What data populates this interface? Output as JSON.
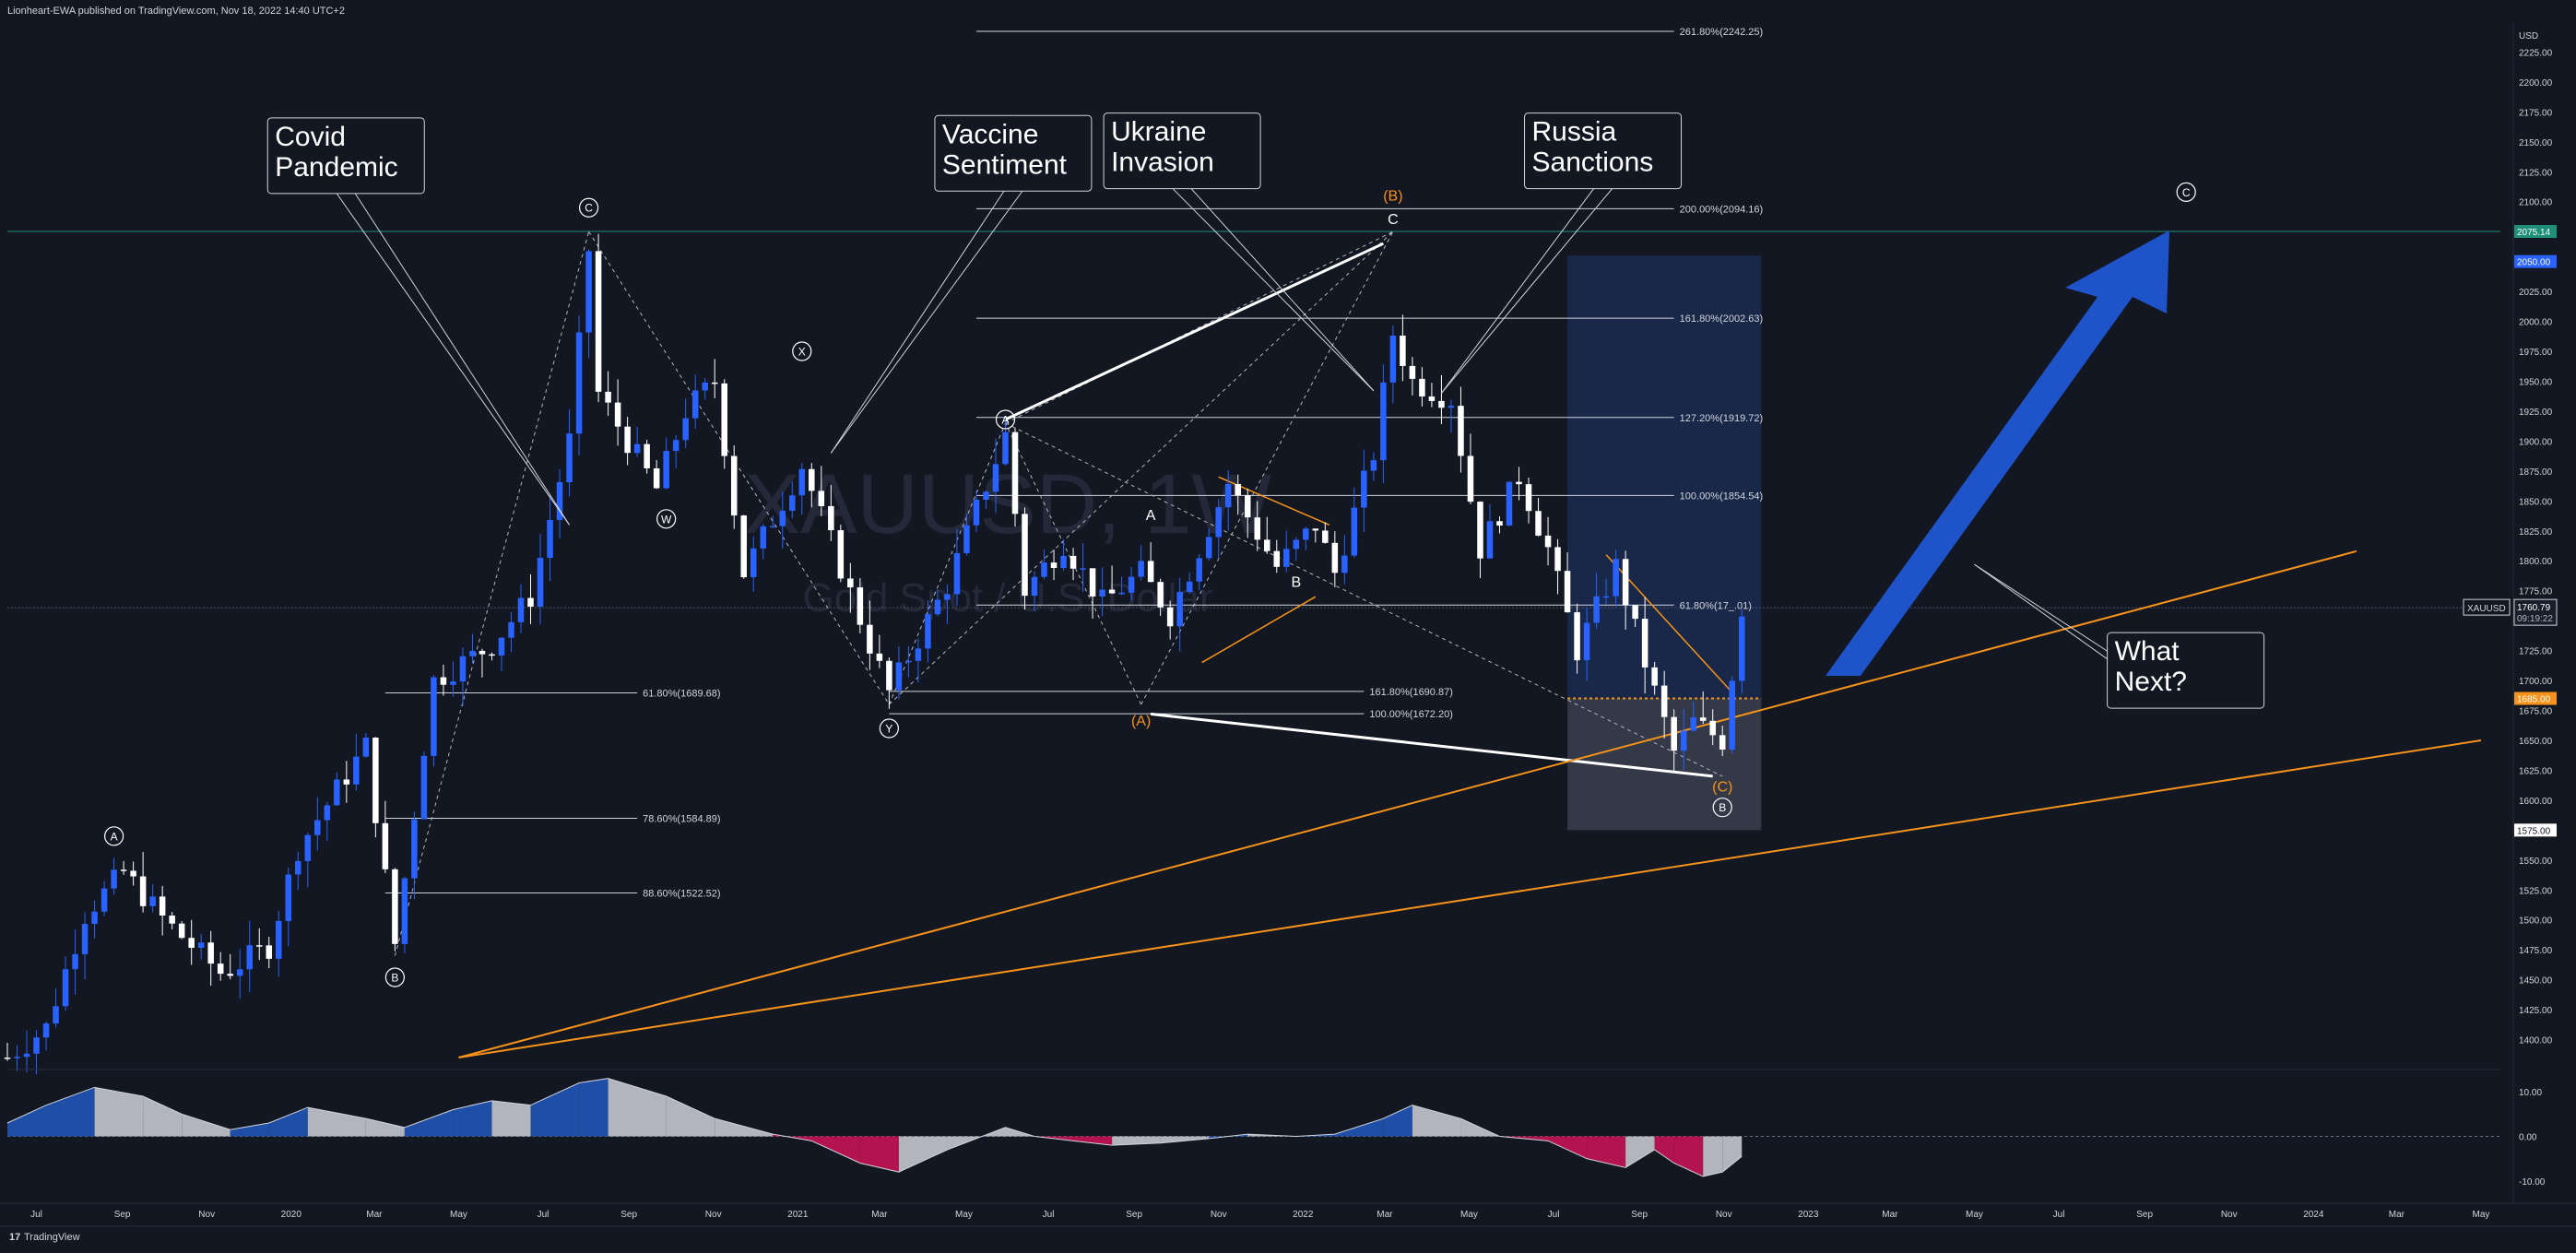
{
  "header": {
    "publisher_line": "Lionheart-EWA published on TradingView.com, Nov 18, 2022 14:40 UTC+2"
  },
  "footer": {
    "brand": "TradingView",
    "logo_glyph": "17"
  },
  "watermark": {
    "symbol": "XAUUSD, 1W",
    "description": "Gold Spot / U.S. Dollar"
  },
  "colors": {
    "background": "#131722",
    "bull": "#2962ff",
    "bear": "#ffffff",
    "text": "#d1d4dc",
    "orange": "#f7931a",
    "arrow": "#1e53c9",
    "osc_blue": "#1f4ea6",
    "osc_gray": "#b2b5be",
    "osc_red": "#b3134f",
    "teal_line": "#1e8f79",
    "fib": "#d1d4dc"
  },
  "price_axis": {
    "currency": "USD",
    "min": 1375,
    "max": 2250,
    "step": 25,
    "ticks": [
      "1400.00",
      "1425.00",
      "1450.00",
      "1475.00",
      "1500.00",
      "1525.00",
      "1550.00",
      "1575.00",
      "1600.00",
      "1625.00",
      "1650.00",
      "1675.00",
      "1700.00",
      "1725.00",
      "1750.00",
      "1775.00",
      "1800.00",
      "1825.00",
      "1850.00",
      "1875.00",
      "1900.00",
      "1925.00",
      "1950.00",
      "1975.00",
      "2000.00",
      "2025.00",
      "2050.00",
      "2075.00",
      "2100.00",
      "2125.00",
      "2150.00",
      "2175.00",
      "2200.00",
      "2225.00"
    ],
    "badges": [
      {
        "label": "2075.14",
        "value": 2075.14,
        "color": "#1e8f79"
      },
      {
        "label": "2050.00",
        "value": 2050,
        "color": "#2962ff"
      },
      {
        "label": "1685.00",
        "value": 1685,
        "color": "#f7931a"
      },
      {
        "label": "1575.00",
        "value": 1575,
        "color": "#ffffff"
      }
    ],
    "symbol_tag": {
      "symbol": "XAUUSD",
      "price": "1760.79",
      "countdown": "09:19:22",
      "value": 1760.79
    }
  },
  "time_axis": {
    "labels": [
      {
        "t": "Jul",
        "d": "2019-07-01"
      },
      {
        "t": "Sep",
        "d": "2019-09-01"
      },
      {
        "t": "Nov",
        "d": "2019-11-01"
      },
      {
        "t": "2020",
        "d": "2020-01-01"
      },
      {
        "t": "Mar",
        "d": "2020-03-01"
      },
      {
        "t": "May",
        "d": "2020-05-01"
      },
      {
        "t": "Jul",
        "d": "2020-07-01"
      },
      {
        "t": "Sep",
        "d": "2020-09-01"
      },
      {
        "t": "Nov",
        "d": "2020-11-01"
      },
      {
        "t": "2021",
        "d": "2021-01-01"
      },
      {
        "t": "Mar",
        "d": "2021-03-01"
      },
      {
        "t": "May",
        "d": "2021-05-01"
      },
      {
        "t": "Jul",
        "d": "2021-07-01"
      },
      {
        "t": "Sep",
        "d": "2021-09-01"
      },
      {
        "t": "Nov",
        "d": "2021-11-01"
      },
      {
        "t": "2022",
        "d": "2022-01-01"
      },
      {
        "t": "Mar",
        "d": "2022-03-01"
      },
      {
        "t": "May",
        "d": "2022-05-01"
      },
      {
        "t": "Jul",
        "d": "2022-07-01"
      },
      {
        "t": "Sep",
        "d": "2022-09-01"
      },
      {
        "t": "Nov",
        "d": "2022-11-01"
      },
      {
        "t": "2023",
        "d": "2023-01-01"
      },
      {
        "t": "Mar",
        "d": "2023-03-01"
      },
      {
        "t": "May",
        "d": "2023-05-01"
      },
      {
        "t": "Jul",
        "d": "2023-07-01"
      },
      {
        "t": "Sep",
        "d": "2023-09-01"
      },
      {
        "t": "Nov",
        "d": "2023-11-01"
      },
      {
        "t": "2024",
        "d": "2024-01-01"
      },
      {
        "t": "Mar",
        "d": "2024-03-01"
      },
      {
        "t": "May",
        "d": "2024-05-01"
      }
    ]
  },
  "chart_data": {
    "type": "candlestick",
    "symbol": "XAUUSD",
    "interval": "1W",
    "x_range": [
      "2019-06-10",
      "2024-05-15"
    ],
    "ylim": [
      1375,
      2250
    ],
    "grid": false,
    "key_prices": [
      {
        "d": "2019-06-10",
        "v": 1385
      },
      {
        "d": "2019-07-08",
        "v": 1410
      },
      {
        "d": "2019-08-05",
        "v": 1505
      },
      {
        "d": "2019-09-02",
        "v": 1540
      },
      {
        "d": "2019-10-01",
        "v": 1500
      },
      {
        "d": "2019-11-12",
        "v": 1455
      },
      {
        "d": "2019-12-16",
        "v": 1478
      },
      {
        "d": "2020-01-06",
        "v": 1560
      },
      {
        "d": "2020-02-24",
        "v": 1645
      },
      {
        "d": "2020-03-16",
        "v": 1480
      },
      {
        "d": "2020-04-13",
        "v": 1700
      },
      {
        "d": "2020-05-25",
        "v": 1730
      },
      {
        "d": "2020-06-22",
        "v": 1770
      },
      {
        "d": "2020-07-20",
        "v": 1900
      },
      {
        "d": "2020-08-03",
        "v": 2060
      },
      {
        "d": "2020-08-10",
        "v": 1940
      },
      {
        "d": "2020-09-21",
        "v": 1860
      },
      {
        "d": "2020-10-12",
        "v": 1925
      },
      {
        "d": "2020-11-02",
        "v": 1950
      },
      {
        "d": "2020-11-23",
        "v": 1790
      },
      {
        "d": "2021-01-04",
        "v": 1880
      },
      {
        "d": "2021-02-22",
        "v": 1730
      },
      {
        "d": "2021-03-08",
        "v": 1690
      },
      {
        "d": "2021-04-19",
        "v": 1780
      },
      {
        "d": "2021-05-31",
        "v": 1905
      },
      {
        "d": "2021-06-14",
        "v": 1775
      },
      {
        "d": "2021-07-12",
        "v": 1815
      },
      {
        "d": "2021-08-09",
        "v": 1765
      },
      {
        "d": "2021-09-06",
        "v": 1790
      },
      {
        "d": "2021-09-27",
        "v": 1755
      },
      {
        "d": "2021-11-08",
        "v": 1865
      },
      {
        "d": "2021-12-13",
        "v": 1795
      },
      {
        "d": "2022-01-10",
        "v": 1830
      },
      {
        "d": "2022-01-24",
        "v": 1790
      },
      {
        "d": "2022-02-21",
        "v": 1890
      },
      {
        "d": "2022-03-07",
        "v": 1990
      },
      {
        "d": "2022-03-21",
        "v": 1950
      },
      {
        "d": "2022-04-18",
        "v": 1935
      },
      {
        "d": "2022-05-09",
        "v": 1810
      },
      {
        "d": "2022-06-06",
        "v": 1870
      },
      {
        "d": "2022-06-27",
        "v": 1810
      },
      {
        "d": "2022-07-18",
        "v": 1725
      },
      {
        "d": "2022-08-15",
        "v": 1795
      },
      {
        "d": "2022-09-05",
        "v": 1715
      },
      {
        "d": "2022-09-26",
        "v": 1640
      },
      {
        "d": "2022-10-10",
        "v": 1665
      },
      {
        "d": "2022-10-31",
        "v": 1650
      },
      {
        "d": "2022-11-14",
        "v": 1760.79
      }
    ],
    "fib_levels": [
      {
        "label": "261.80%(2242.25)",
        "value": 2242.25,
        "x1": "2021-05-10",
        "x2": "2022-09-26"
      },
      {
        "label": "200.00%(2094.16)",
        "value": 2094.16,
        "x1": "2021-05-10",
        "x2": "2022-09-26"
      },
      {
        "label": "161.80%(2002.63)",
        "value": 2002.63,
        "x1": "2021-05-10",
        "x2": "2022-09-26"
      },
      {
        "label": "127.20%(1919.72)",
        "value": 1919.72,
        "x1": "2021-05-10",
        "x2": "2022-09-26"
      },
      {
        "label": "100.00%(1854.54)",
        "value": 1854.54,
        "x1": "2021-05-10",
        "x2": "2022-09-26"
      },
      {
        "label": "61.80%(17_.01)",
        "value": 1763.01,
        "x1": "2021-05-10",
        "x2": "2022-09-26"
      },
      {
        "label": "161.80%(1690.87)",
        "value": 1690.87,
        "x1": "2021-03-08",
        "x2": "2022-02-14"
      },
      {
        "label": "100.00%(1672.20)",
        "value": 1672.2,
        "x1": "2021-03-08",
        "x2": "2022-02-14"
      },
      {
        "label": "61.80%(1689.68)",
        "value": 1689.68,
        "x1": "2020-03-09",
        "x2": "2020-09-07"
      },
      {
        "label": "78.60%(1584.89)",
        "value": 1584.89,
        "x1": "2020-03-09",
        "x2": "2020-09-07"
      },
      {
        "label": "88.60%(1522.52)",
        "value": 1522.52,
        "x1": "2020-03-09",
        "x2": "2020-09-07"
      }
    ],
    "waves": [
      {
        "label": "A",
        "d": "2019-08-26",
        "v": 1570,
        "circled": true,
        "color": "#ffffff"
      },
      {
        "label": "B",
        "d": "2020-03-16",
        "v": 1452,
        "circled": true,
        "color": "#ffffff"
      },
      {
        "label": "C",
        "d": "2020-08-03",
        "v": 2095,
        "circled": true,
        "color": "#ffffff"
      },
      {
        "label": "W",
        "d": "2020-09-28",
        "v": 1835,
        "circled": true,
        "color": "#ffffff"
      },
      {
        "label": "X",
        "d": "2021-01-04",
        "v": 1975,
        "circled": true,
        "color": "#ffffff"
      },
      {
        "label": "Y",
        "d": "2021-03-08",
        "v": 1660,
        "circled": true,
        "color": "#ffffff"
      },
      {
        "label": "A",
        "d": "2021-05-31",
        "v": 1918,
        "circled": true,
        "color": "#ffffff"
      },
      {
        "label": "A",
        "d": "2021-09-13",
        "v": 1838,
        "circled": false,
        "color": "#ffffff"
      },
      {
        "label": "B",
        "d": "2021-12-27",
        "v": 1782,
        "circled": false,
        "color": "#ffffff"
      },
      {
        "label": "(A)",
        "d": "2021-09-06",
        "v": 1666,
        "circled": false,
        "color": "#f7931a"
      },
      {
        "label": "(B)",
        "d": "2022-03-07",
        "v": 2105,
        "circled": false,
        "color": "#f7931a"
      },
      {
        "label": "C",
        "d": "2022-03-07",
        "v": 2085,
        "circled": false,
        "color": "#ffffff"
      },
      {
        "label": "(C)",
        "d": "2022-10-31",
        "v": 1611,
        "circled": false,
        "color": "#f7931a"
      },
      {
        "label": "B",
        "d": "2022-10-31",
        "v": 1594,
        "circled": true,
        "color": "#ffffff"
      },
      {
        "label": "C",
        "d": "2023-10-01",
        "v": 2108,
        "circled": true,
        "color": "#ffffff"
      }
    ],
    "callouts": [
      {
        "lines": [
          "Covid",
          "Pandemic"
        ],
        "d": "2019-12-15",
        "v": 2170,
        "to": {
          "d": "2020-07-20",
          "v": 1830
        }
      },
      {
        "lines": [
          "Vaccine",
          "Sentiment"
        ],
        "d": "2021-04-10",
        "v": 2172,
        "to": {
          "d": "2021-01-25",
          "v": 1890
        }
      },
      {
        "lines": [
          "Ukraine",
          "Invasion"
        ],
        "d": "2021-08-10",
        "v": 2174,
        "to": {
          "d": "2022-02-21",
          "v": 1942
        }
      },
      {
        "lines": [
          "Russia",
          "Sanctions"
        ],
        "d": "2022-06-10",
        "v": 2174,
        "to": {
          "d": "2022-04-11",
          "v": 1940
        }
      },
      {
        "lines": [
          "What",
          "Next?"
        ],
        "d": "2023-08-05",
        "v": 1740,
        "to": {
          "d": "2023-05-01",
          "v": 1797
        }
      }
    ],
    "oscillator": {
      "ylim": [
        -15,
        15
      ],
      "ticks": [
        "10.00",
        "0.00",
        "-10.00"
      ],
      "tick_values": [
        10,
        0,
        -10
      ],
      "points": [
        {
          "d": "2019-06-10",
          "v": 3
        },
        {
          "d": "2019-07-08",
          "v": 7
        },
        {
          "d": "2019-08-12",
          "v": 11
        },
        {
          "d": "2019-09-16",
          "v": 9
        },
        {
          "d": "2019-10-14",
          "v": 5
        },
        {
          "d": "2019-11-18",
          "v": 1.5
        },
        {
          "d": "2019-12-16",
          "v": 3
        },
        {
          "d": "2020-01-13",
          "v": 6.5
        },
        {
          "d": "2020-02-24",
          "v": 4
        },
        {
          "d": "2020-03-23",
          "v": 2
        },
        {
          "d": "2020-04-27",
          "v": 6
        },
        {
          "d": "2020-05-25",
          "v": 8
        },
        {
          "d": "2020-06-22",
          "v": 7
        },
        {
          "d": "2020-07-27",
          "v": 12
        },
        {
          "d": "2020-08-17",
          "v": 13
        },
        {
          "d": "2020-09-28",
          "v": 9
        },
        {
          "d": "2020-11-02",
          "v": 4
        },
        {
          "d": "2020-12-14",
          "v": 0.5
        },
        {
          "d": "2021-01-11",
          "v": -1
        },
        {
          "d": "2021-02-15",
          "v": -6
        },
        {
          "d": "2021-03-15",
          "v": -8
        },
        {
          "d": "2021-04-19",
          "v": -3
        },
        {
          "d": "2021-05-31",
          "v": 2
        },
        {
          "d": "2021-06-21",
          "v": 0
        },
        {
          "d": "2021-07-19",
          "v": -1
        },
        {
          "d": "2021-08-16",
          "v": -2
        },
        {
          "d": "2021-09-20",
          "v": -1.5
        },
        {
          "d": "2021-10-25",
          "v": -0.5
        },
        {
          "d": "2021-11-22",
          "v": 0.5
        },
        {
          "d": "2021-12-27",
          "v": 0
        },
        {
          "d": "2022-01-24",
          "v": 0.5
        },
        {
          "d": "2022-02-28",
          "v": 4
        },
        {
          "d": "2022-03-21",
          "v": 7
        },
        {
          "d": "2022-04-25",
          "v": 4
        },
        {
          "d": "2022-05-23",
          "v": 0
        },
        {
          "d": "2022-06-27",
          "v": -1
        },
        {
          "d": "2022-07-25",
          "v": -5
        },
        {
          "d": "2022-08-22",
          "v": -7
        },
        {
          "d": "2022-09-12",
          "v": -3
        },
        {
          "d": "2022-09-26",
          "v": -6
        },
        {
          "d": "2022-10-17",
          "v": -9
        },
        {
          "d": "2022-10-31",
          "v": -8
        },
        {
          "d": "2022-11-14",
          "v": -4.5
        }
      ]
    }
  }
}
